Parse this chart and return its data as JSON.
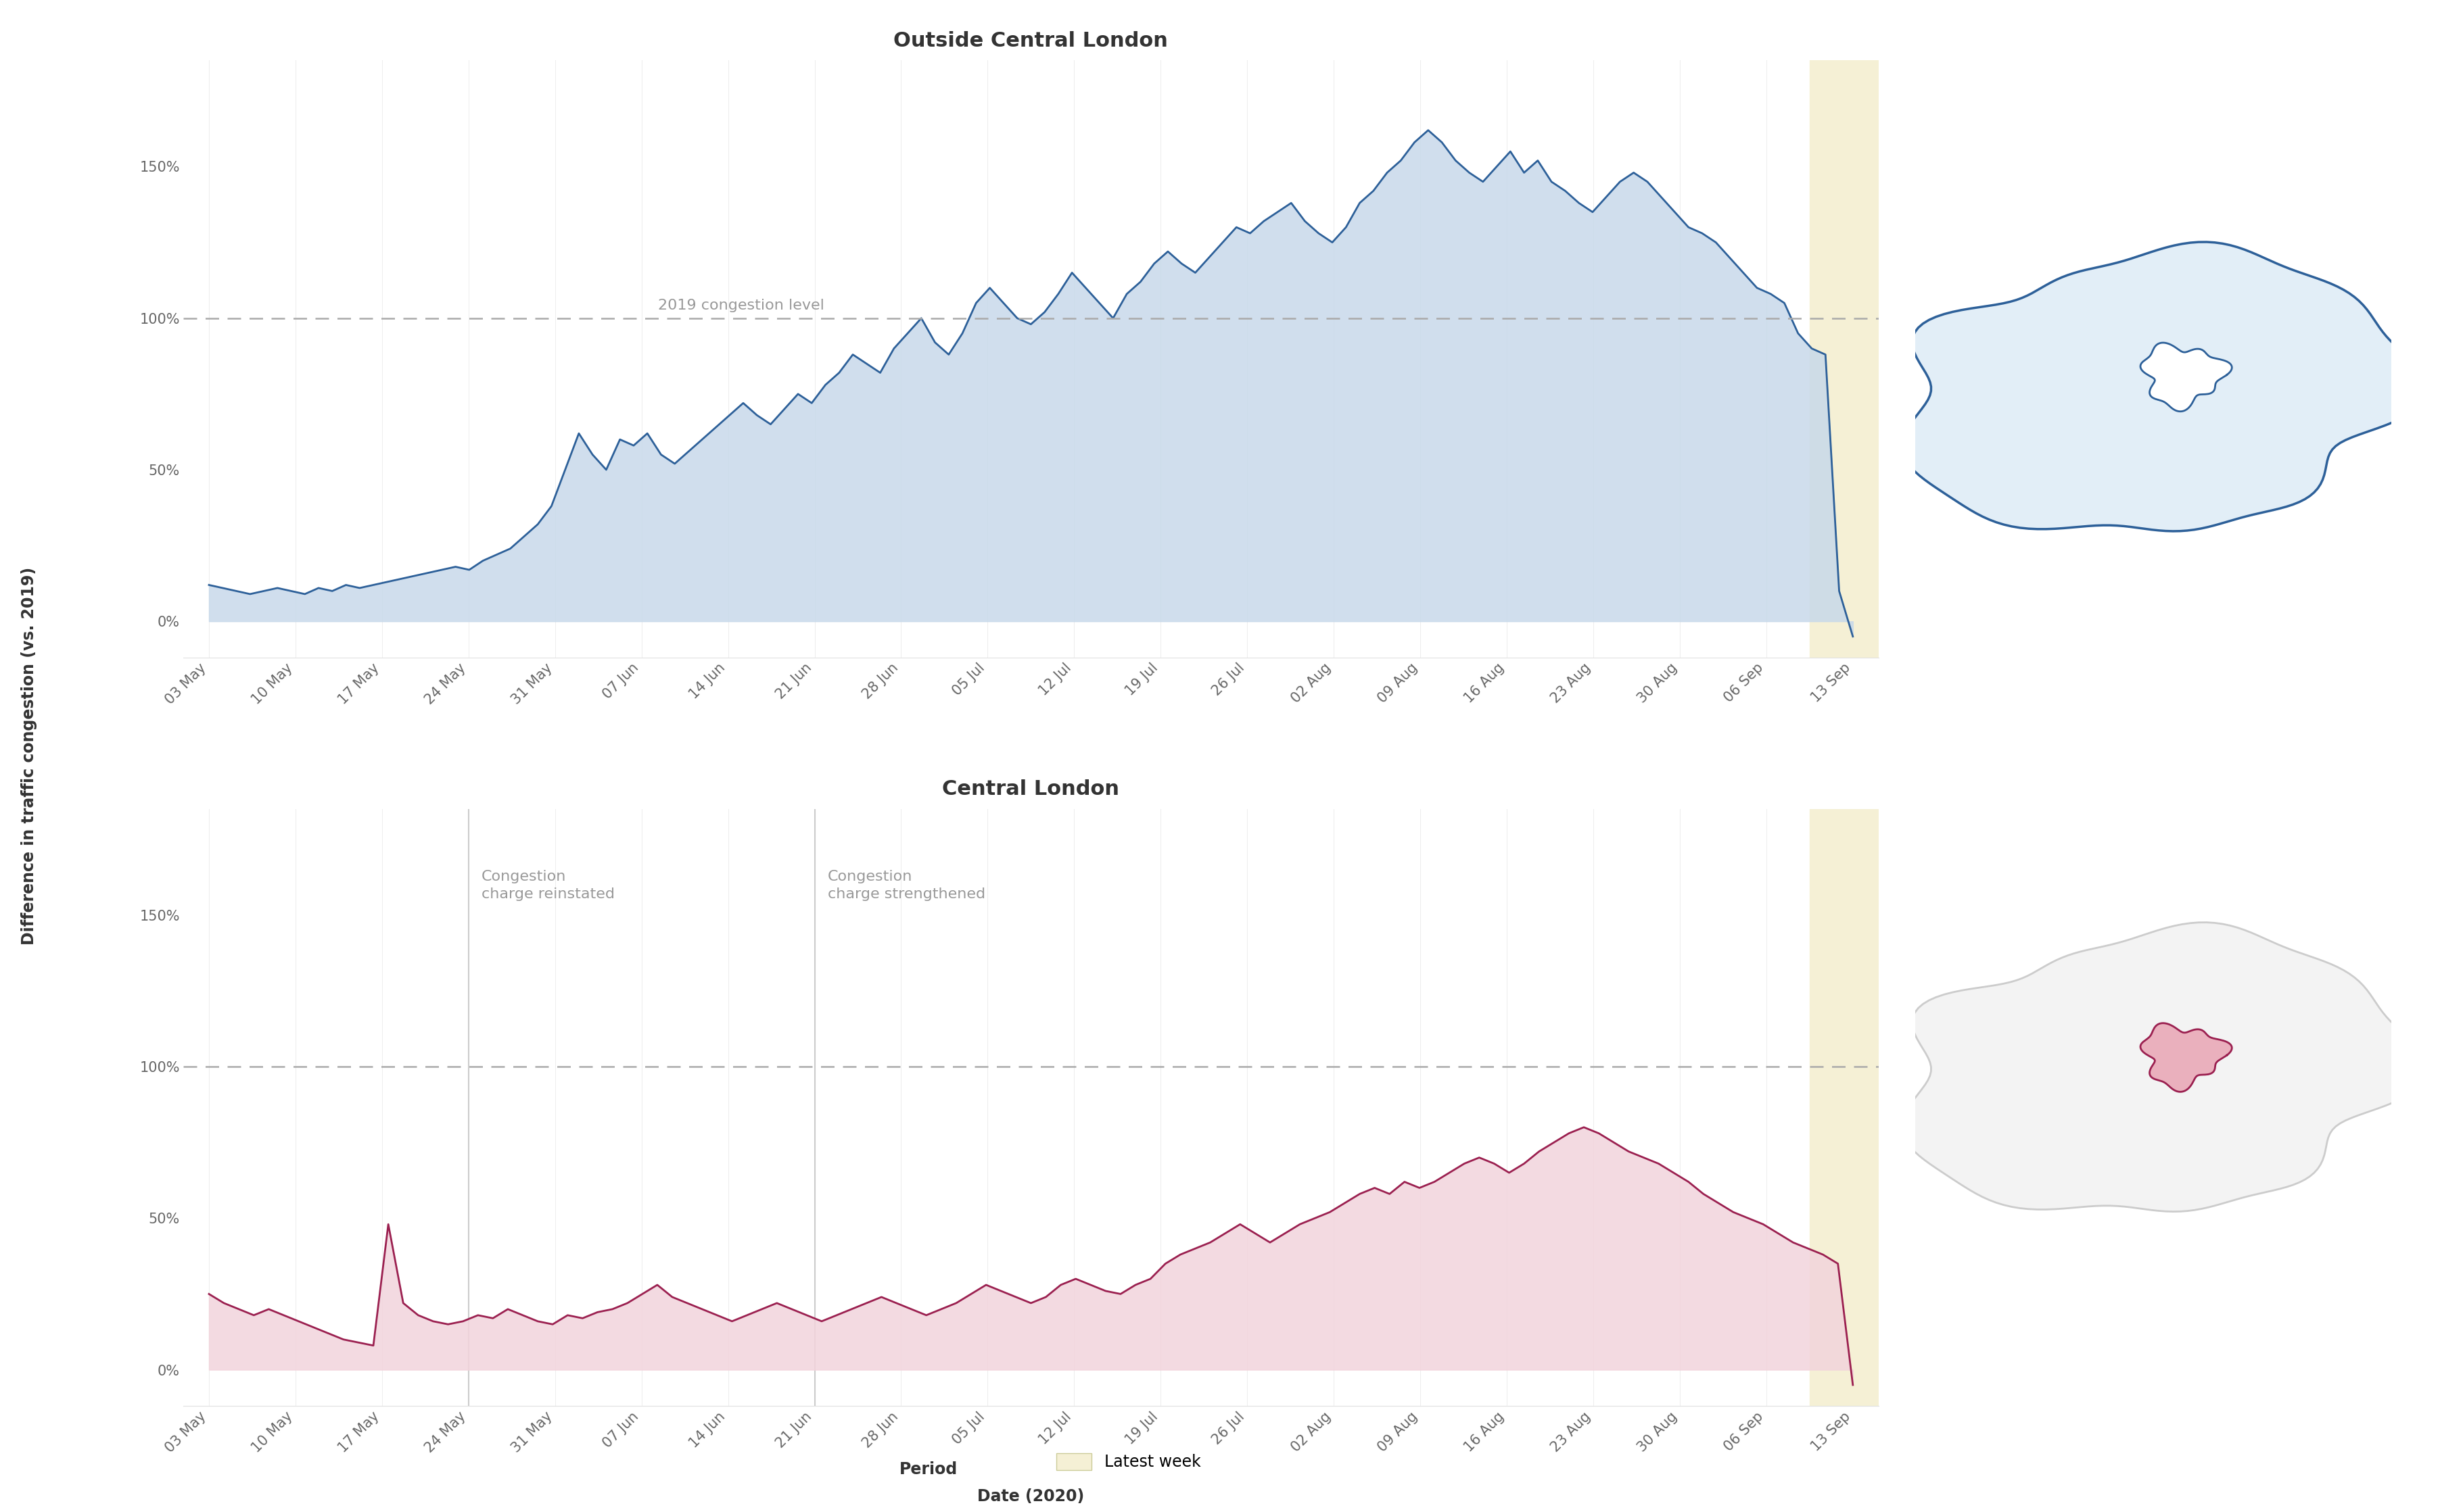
{
  "title_top": "Outside Central London",
  "title_bottom": "Central London",
  "ylabel": "Difference in traffic congestion (vs. 2019)",
  "xlabel": "Date (2020)",
  "x_labels": [
    "03 May",
    "10 May",
    "17 May",
    "24 May",
    "31 May",
    "07 Jun",
    "14 Jun",
    "21 Jun",
    "28 Jun",
    "05 Jul",
    "12 Jul",
    "19 Jul",
    "26 Jul",
    "02 Aug",
    "09 Aug",
    "16 Aug",
    "23 Aug",
    "30 Aug",
    "06 Sep",
    "13 Sep"
  ],
  "reference_label": "2019 congestion level",
  "vline_idx_reinstated": 3,
  "vline_idx_strengthened": 7,
  "annotation_reinstated": "Congestion\ncharge reinstated",
  "annotation_strengthened": "Congestion\ncharge strengthened",
  "outside_fill_color": "#c8d9ea",
  "outside_line_color": "#2d6099",
  "central_fill_color": "#f2d4dc",
  "central_line_color": "#9b2050",
  "reference_color": "#aaaaaa",
  "vline_color": "#cccccc",
  "latest_week_color": "#f5f0d5",
  "background_color": "#ffffff",
  "text_color": "#555555",
  "annotation_color": "#999999",
  "title_fontsize": 22,
  "label_fontsize": 17,
  "tick_fontsize": 15,
  "annotation_fontsize": 16,
  "yticks": [
    0,
    50,
    100,
    150
  ],
  "ylim": [
    -12,
    185
  ],
  "outside_data": [
    12,
    11,
    10,
    9,
    10,
    11,
    10,
    9,
    11,
    10,
    12,
    11,
    12,
    13,
    14,
    15,
    16,
    17,
    18,
    17,
    20,
    22,
    24,
    28,
    32,
    38,
    50,
    62,
    55,
    50,
    60,
    58,
    62,
    55,
    52,
    56,
    60,
    64,
    68,
    72,
    68,
    65,
    70,
    75,
    72,
    78,
    82,
    88,
    85,
    82,
    90,
    95,
    100,
    92,
    88,
    95,
    105,
    110,
    105,
    100,
    98,
    102,
    108,
    115,
    110,
    105,
    100,
    108,
    112,
    118,
    122,
    118,
    115,
    120,
    125,
    130,
    128,
    132,
    135,
    138,
    132,
    128,
    125,
    130,
    138,
    142,
    148,
    152,
    158,
    162,
    158,
    152,
    148,
    145,
    150,
    155,
    148,
    152,
    145,
    142,
    138,
    135,
    140,
    145,
    148,
    145,
    140,
    135,
    130,
    128,
    125,
    120,
    115,
    110,
    108,
    105,
    95,
    90,
    88,
    10,
    -5
  ],
  "central_data": [
    25,
    22,
    20,
    18,
    20,
    18,
    16,
    14,
    12,
    10,
    9,
    8,
    48,
    22,
    18,
    16,
    15,
    16,
    18,
    17,
    20,
    18,
    16,
    15,
    18,
    17,
    19,
    20,
    22,
    25,
    28,
    24,
    22,
    20,
    18,
    16,
    18,
    20,
    22,
    20,
    18,
    16,
    18,
    20,
    22,
    24,
    22,
    20,
    18,
    20,
    22,
    25,
    28,
    26,
    24,
    22,
    24,
    28,
    30,
    28,
    26,
    25,
    28,
    30,
    35,
    38,
    40,
    42,
    45,
    48,
    45,
    42,
    45,
    48,
    50,
    52,
    55,
    58,
    60,
    58,
    62,
    60,
    62,
    65,
    68,
    70,
    68,
    65,
    68,
    72,
    75,
    78,
    80,
    78,
    75,
    72,
    70,
    68,
    65,
    62,
    58,
    55,
    52,
    50,
    48,
    45,
    42,
    40,
    38,
    35,
    -5
  ]
}
